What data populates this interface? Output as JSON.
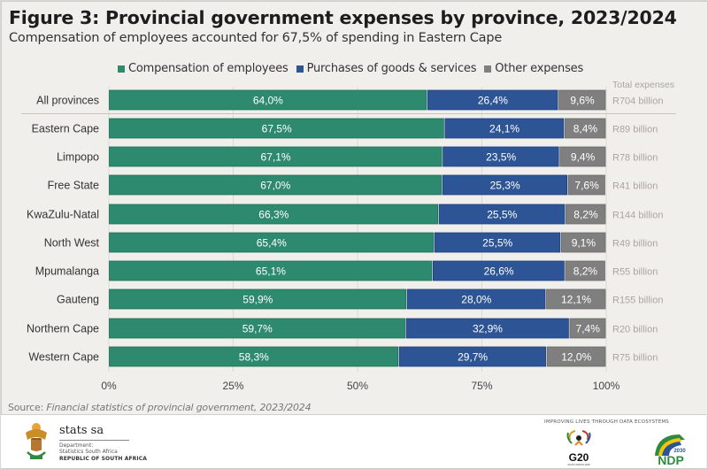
{
  "header": {
    "title": "Figure 3: Provincial government expenses by province, 2023/2024",
    "subtitle": "Compensation of employees accounted for 67,5% of spending in Eastern Cape"
  },
  "chart_data": {
    "type": "bar",
    "orientation": "horizontal",
    "stacked": true,
    "percent_stacked": true,
    "title": "Figure 3: Provincial government expenses by province, 2023/2024",
    "subtitle": "Compensation of employees accounted for 67,5% of spending in Eastern Cape",
    "xlabel": "",
    "ylabel": "",
    "xlim": [
      0,
      100
    ],
    "x_ticks": [
      "0%",
      "25%",
      "50%",
      "75%",
      "100%"
    ],
    "grid": "vertical",
    "legend_position": "top",
    "categories": [
      "All provinces",
      "Eastern Cape",
      "Limpopo",
      "Free State",
      "KwaZulu-Natal",
      "North West",
      "Mpumalanga",
      "Gauteng",
      "Northern Cape",
      "Western Cape"
    ],
    "series": [
      {
        "name": "Compensation of employees",
        "color": "#2e8a6e",
        "values": [
          64.0,
          67.5,
          67.1,
          67.0,
          66.3,
          65.4,
          65.1,
          59.9,
          59.7,
          58.3
        ],
        "labels": [
          "64,0%",
          "67,5%",
          "67,1%",
          "67,0%",
          "66,3%",
          "65,4%",
          "65,1%",
          "59,9%",
          "59,7%",
          "58,3%"
        ]
      },
      {
        "name": "Purchases of goods & services",
        "color": "#2d5596",
        "values": [
          26.4,
          24.1,
          23.5,
          25.3,
          25.5,
          25.5,
          26.6,
          28.0,
          32.9,
          29.7
        ],
        "labels": [
          "26,4%",
          "24,1%",
          "23,5%",
          "25,3%",
          "25,5%",
          "25,5%",
          "26,6%",
          "28,0%",
          "32,9%",
          "29,7%"
        ]
      },
      {
        "name": "Other expenses",
        "color": "#7f7f7f",
        "values": [
          9.6,
          8.4,
          9.4,
          7.6,
          8.2,
          9.1,
          8.2,
          12.1,
          7.4,
          12.0
        ],
        "labels": [
          "9,6%",
          "8,4%",
          "9,4%",
          "7,6%",
          "8,2%",
          "9,1%",
          "8,2%",
          "12,1%",
          "7,4%",
          "12,0%"
        ]
      }
    ],
    "total_expenses": {
      "header": "Total expenses",
      "values": [
        "R704 billion",
        "R89 billion",
        "R78 billion",
        "R41 billion",
        "R144 billion",
        "R49 billion",
        "R55 billion",
        "R155 billion",
        "R20 billion",
        "R75 billion"
      ]
    }
  },
  "source": {
    "prefix": "Source: ",
    "text": "Financial statistics of provincial government, 2023/2024"
  },
  "footer": {
    "org_name": "stats sa",
    "dept_line1": "Department:",
    "dept_line2": "Statistics South Africa",
    "country": "REPUBLIC OF SOUTH AFRICA",
    "tagline": "IMPROVING LIVES THROUGH DATA ECOSYSTEMS",
    "g20_label": "G20",
    "g20_sub": "SOUTH AFRICA 2025",
    "ndp_label": "NDP",
    "ndp_year": "2030"
  }
}
